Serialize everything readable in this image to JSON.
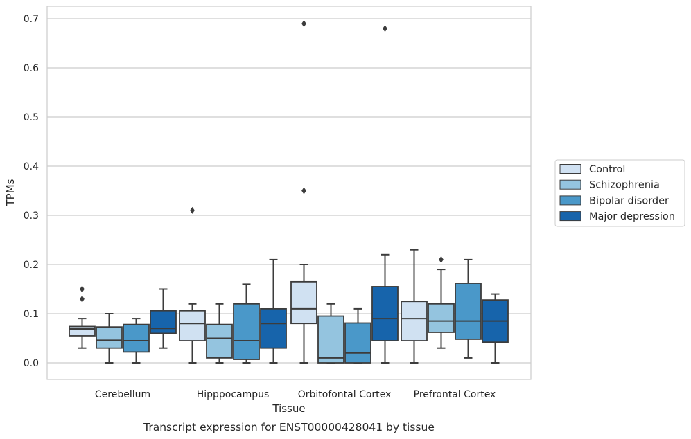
{
  "chart_data": {
    "type": "box",
    "caption": "Transcript expression for ENST00000428041 by tissue",
    "xlabel": "Tissue",
    "ylabel": "TPMs",
    "ylim": [
      -0.034,
      0.727
    ],
    "yticks": [
      "0.0",
      "0.1",
      "0.2",
      "0.3",
      "0.4",
      "0.5",
      "0.6",
      "0.7"
    ],
    "grid": true,
    "legend_position": "right",
    "categories": [
      "Cerebellum",
      "Hipppocampus",
      "Orbitofontal Cortex",
      "Prefrontal Cortex"
    ],
    "series": [
      {
        "name": "Control",
        "color": "#d0e1f2",
        "boxes": [
          {
            "whislo": 0.03,
            "q1": 0.055,
            "med": 0.069,
            "q3": 0.074,
            "whishi": 0.09,
            "fliers": [
              0.13,
              0.15
            ]
          },
          {
            "whislo": 0.0,
            "q1": 0.045,
            "med": 0.08,
            "q3": 0.106,
            "whishi": 0.12,
            "fliers": [
              0.31
            ]
          },
          {
            "whislo": 0.0,
            "q1": 0.08,
            "med": 0.11,
            "q3": 0.165,
            "whishi": 0.2,
            "fliers": [
              0.35,
              0.69
            ]
          },
          {
            "whislo": 0.0,
            "q1": 0.045,
            "med": 0.09,
            "q3": 0.125,
            "whishi": 0.23,
            "fliers": []
          }
        ]
      },
      {
        "name": "Schizophrenia",
        "color": "#94c4df",
        "boxes": [
          {
            "whislo": 0.0,
            "q1": 0.03,
            "med": 0.046,
            "q3": 0.073,
            "whishi": 0.1,
            "fliers": []
          },
          {
            "whislo": 0.0,
            "q1": 0.01,
            "med": 0.05,
            "q3": 0.078,
            "whishi": 0.12,
            "fliers": []
          },
          {
            "whislo": 0.0,
            "q1": 0.0,
            "med": 0.01,
            "q3": 0.095,
            "whishi": 0.12,
            "fliers": []
          },
          {
            "whislo": 0.03,
            "q1": 0.062,
            "med": 0.085,
            "q3": 0.12,
            "whishi": 0.19,
            "fliers": [
              0.21
            ]
          }
        ]
      },
      {
        "name": "Bipolar disorder",
        "color": "#4a98c9",
        "boxes": [
          {
            "whislo": 0.0,
            "q1": 0.022,
            "med": 0.045,
            "q3": 0.078,
            "whishi": 0.09,
            "fliers": []
          },
          {
            "whislo": 0.0,
            "q1": 0.007,
            "med": 0.045,
            "q3": 0.12,
            "whishi": 0.16,
            "fliers": []
          },
          {
            "whislo": 0.0,
            "q1": 0.0,
            "med": 0.02,
            "q3": 0.081,
            "whishi": 0.11,
            "fliers": []
          },
          {
            "whislo": 0.01,
            "q1": 0.048,
            "med": 0.085,
            "q3": 0.162,
            "whishi": 0.21,
            "fliers": []
          }
        ]
      },
      {
        "name": "Major depression",
        "color": "#1764ab",
        "boxes": [
          {
            "whislo": 0.03,
            "q1": 0.06,
            "med": 0.07,
            "q3": 0.106,
            "whishi": 0.15,
            "fliers": []
          },
          {
            "whislo": 0.0,
            "q1": 0.03,
            "med": 0.08,
            "q3": 0.11,
            "whishi": 0.21,
            "fliers": []
          },
          {
            "whislo": 0.0,
            "q1": 0.045,
            "med": 0.09,
            "q3": 0.155,
            "whishi": 0.22,
            "fliers": [
              0.68
            ]
          },
          {
            "whislo": 0.0,
            "q1": 0.042,
            "med": 0.085,
            "q3": 0.128,
            "whishi": 0.14,
            "fliers": []
          }
        ]
      }
    ]
  }
}
